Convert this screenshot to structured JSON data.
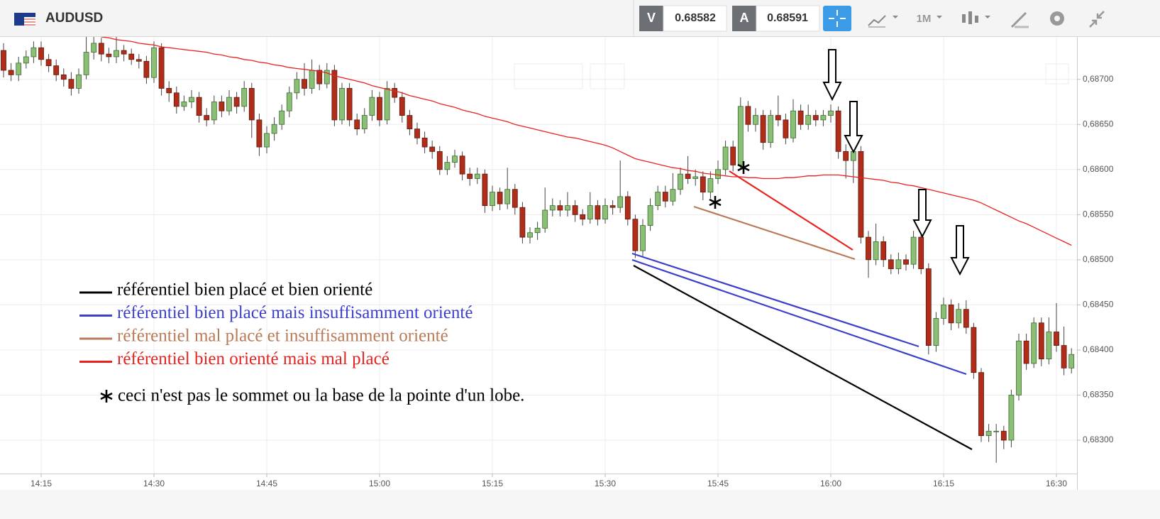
{
  "toolbar": {
    "symbol": "AUDUSD",
    "bid_label": "V",
    "bid": 0.68582,
    "ask_label": "A",
    "ask": 0.68591,
    "timeframe": "1M"
  },
  "chart_data": {
    "type": "candlestick",
    "categories": [
      null,
      null,
      null,
      null,
      null,
      "14:15",
      null,
      null,
      null,
      null,
      null,
      null,
      null,
      null,
      null,
      null,
      null,
      null,
      null,
      null,
      "14:30",
      null,
      null,
      null,
      null,
      null,
      null,
      null,
      null,
      null,
      null,
      null,
      null,
      null,
      null,
      "14:45",
      null,
      null,
      null,
      null,
      null,
      null,
      null,
      null,
      null,
      null,
      null,
      null,
      null,
      null,
      "15:00",
      null,
      null,
      null,
      null,
      null,
      null,
      null,
      null,
      null,
      null,
      null,
      null,
      null,
      null,
      "15:15",
      null,
      null,
      null,
      null,
      null,
      null,
      null,
      null,
      null,
      null,
      null,
      null,
      null,
      null,
      "15:30",
      null,
      null,
      null,
      null,
      null,
      null,
      null,
      null,
      null,
      null,
      null,
      null,
      null,
      null,
      "15:45",
      null,
      null,
      null,
      null,
      null,
      null,
      null,
      null,
      null,
      null,
      null,
      null,
      null,
      null,
      "16:00",
      null,
      null,
      null,
      null,
      null,
      null,
      null,
      null,
      null,
      null,
      null,
      null,
      null,
      null,
      "16:15",
      null,
      null,
      null,
      null,
      null,
      null,
      null,
      null,
      null,
      null,
      null,
      null,
      null,
      null,
      "16:30",
      null,
      null
    ],
    "open": [
      0.68732,
      0.6871,
      0.68705,
      0.68718,
      0.68725,
      0.68735,
      0.68722,
      0.68715,
      0.68705,
      0.687,
      0.6869,
      0.68705,
      0.6873,
      0.6874,
      0.68728,
      0.68725,
      0.68732,
      0.68728,
      0.68722,
      0.6872,
      0.68702,
      0.68735,
      0.6869,
      0.68685,
      0.6867,
      0.68675,
      0.6868,
      0.6866,
      0.68655,
      0.68675,
      0.68665,
      0.6868,
      0.6867,
      0.6869,
      0.68655,
      0.68625,
      0.6864,
      0.6865,
      0.68665,
      0.68685,
      0.687,
      0.6869,
      0.6871,
      0.68695,
      0.6871,
      0.68655,
      0.6869,
      0.68655,
      0.68645,
      0.6866,
      0.6868,
      0.68655,
      0.6869,
      0.6868,
      0.6866,
      0.68645,
      0.68635,
      0.68625,
      0.6862,
      0.686,
      0.68608,
      0.68615,
      0.68595,
      0.6859,
      0.68595,
      0.6856,
      0.68575,
      0.68562,
      0.68578,
      0.68558,
      0.68525,
      0.6853,
      0.68535,
      0.68555,
      0.6856,
      0.68555,
      0.6856,
      0.6855,
      0.68545,
      0.6856,
      0.68545,
      0.6856,
      0.68558,
      0.6857,
      0.68545,
      0.6851,
      0.68538,
      0.6856,
      0.68575,
      0.68565,
      0.68578,
      0.68595,
      0.6859,
      0.68592,
      0.68575,
      0.6859,
      0.686,
      0.68625,
      0.68605,
      0.6867,
      0.6865,
      0.6866,
      0.6863,
      0.6866,
      0.68655,
      0.68635,
      0.68665,
      0.6865,
      0.6866,
      0.68655,
      0.6866,
      0.68665,
      0.6862,
      0.6861,
      0.6862,
      0.68525,
      0.685,
      0.6852,
      0.685,
      0.6849,
      0.685,
      0.68495,
      0.68525,
      0.6849,
      0.68405,
      0.68435,
      0.6845,
      0.6843,
      0.68445,
      0.68425,
      0.68375,
      0.68305,
      0.6831,
      0.6831,
      0.683,
      0.6835,
      0.6841,
      0.68385,
      0.6843,
      0.6839,
      0.6842,
      0.68405,
      0.6838
    ],
    "high": [
      0.6874,
      0.68718,
      0.68725,
      0.68732,
      0.68742,
      0.68742,
      0.68728,
      0.68722,
      0.68712,
      0.68708,
      0.68712,
      0.68748,
      0.6875,
      0.68746,
      0.68735,
      0.68748,
      0.68738,
      0.68734,
      0.68728,
      0.68726,
      0.68742,
      0.6874,
      0.68698,
      0.68692,
      0.68682,
      0.68688,
      0.68686,
      0.68668,
      0.68682,
      0.68682,
      0.68688,
      0.68686,
      0.68698,
      0.68696,
      0.68662,
      0.68648,
      0.68658,
      0.68672,
      0.68692,
      0.68708,
      0.68718,
      0.68722,
      0.68716,
      0.68718,
      0.68716,
      0.68696,
      0.68696,
      0.68662,
      0.68668,
      0.68688,
      0.68686,
      0.68698,
      0.68696,
      0.68686,
      0.68666,
      0.68652,
      0.68642,
      0.68632,
      0.68626,
      0.68615,
      0.68622,
      0.6862,
      0.68602,
      0.68602,
      0.686,
      0.68582,
      0.6858,
      0.68602,
      0.68584,
      0.68564,
      0.68536,
      0.68542,
      0.6858,
      0.68568,
      0.68566,
      0.68575,
      0.68566,
      0.68556,
      0.68575,
      0.68566,
      0.68568,
      0.68566,
      0.6861,
      0.68576,
      0.6855,
      0.68545,
      0.68568,
      0.68582,
      0.68582,
      0.68596,
      0.68602,
      0.68615,
      0.686,
      0.68598,
      0.68598,
      0.6861,
      0.68632,
      0.68632,
      0.6868,
      0.68676,
      0.68668,
      0.68666,
      0.68666,
      0.68682,
      0.68662,
      0.68678,
      0.68672,
      0.68672,
      0.68666,
      0.68666,
      0.68672,
      0.6867,
      0.68628,
      0.68628,
      0.68626,
      0.68532,
      0.6854,
      0.68526,
      0.68506,
      0.68508,
      0.68506,
      0.68532,
      0.6853,
      0.68496,
      0.68442,
      0.68458,
      0.68456,
      0.68452,
      0.68455,
      0.6843,
      0.6838,
      0.68318,
      0.68318,
      0.68316,
      0.68356,
      0.68418,
      0.68418,
      0.68436,
      0.68436,
      0.68436,
      0.68452,
      0.68426,
      0.68402
    ],
    "low": [
      0.68702,
      0.68698,
      0.68698,
      0.68712,
      0.68718,
      0.68715,
      0.68708,
      0.68698,
      0.68692,
      0.68682,
      0.68684,
      0.687,
      0.68722,
      0.6872,
      0.68718,
      0.68718,
      0.6872,
      0.68716,
      0.68712,
      0.68695,
      0.68696,
      0.68682,
      0.68675,
      0.68662,
      0.68665,
      0.68668,
      0.68652,
      0.68648,
      0.6865,
      0.68658,
      0.6866,
      0.68662,
      0.68664,
      0.68635,
      0.68615,
      0.68618,
      0.68632,
      0.68644,
      0.68658,
      0.68678,
      0.68682,
      0.68684,
      0.68688,
      0.6869,
      0.68648,
      0.6865,
      0.68648,
      0.68638,
      0.6864,
      0.68654,
      0.68648,
      0.6865,
      0.68674,
      0.68652,
      0.68638,
      0.68628,
      0.68618,
      0.68612,
      0.68594,
      0.68594,
      0.68602,
      0.68588,
      0.68582,
      0.68584,
      0.68552,
      0.68554,
      0.68555,
      0.68556,
      0.6855,
      0.68518,
      0.68518,
      0.68522,
      0.6853,
      0.68548,
      0.68548,
      0.68548,
      0.68542,
      0.68538,
      0.6854,
      0.68538,
      0.6854,
      0.6855,
      0.68552,
      0.68538,
      0.68502,
      0.68504,
      0.68532,
      0.68555,
      0.68558,
      0.6856,
      0.68572,
      0.68584,
      0.68582,
      0.68566,
      0.68568,
      0.68584,
      0.68594,
      0.68598,
      0.686,
      0.68642,
      0.68642,
      0.68622,
      0.68624,
      0.68648,
      0.68628,
      0.6863,
      0.68644,
      0.68644,
      0.68648,
      0.68648,
      0.68652,
      0.68612,
      0.6859,
      0.68585,
      0.68518,
      0.6848,
      0.68494,
      0.68492,
      0.68484,
      0.68484,
      0.68488,
      0.6849,
      0.68484,
      0.68395,
      0.68398,
      0.68428,
      0.68422,
      0.68424,
      0.68418,
      0.68368,
      0.68298,
      0.68298,
      0.68275,
      0.6829,
      0.68292,
      0.68344,
      0.68378,
      0.6838,
      0.68382,
      0.68384,
      0.68398,
      0.68372,
      0.68374
    ],
    "close": [
      0.6871,
      0.68705,
      0.68718,
      0.68725,
      0.68735,
      0.68722,
      0.68715,
      0.68705,
      0.687,
      0.6869,
      0.68705,
      0.6873,
      0.6874,
      0.68728,
      0.68725,
      0.68732,
      0.68728,
      0.68722,
      0.6872,
      0.68702,
      0.68735,
      0.6869,
      0.68685,
      0.6867,
      0.68675,
      0.6868,
      0.6866,
      0.68655,
      0.68675,
      0.68665,
      0.6868,
      0.6867,
      0.6869,
      0.68655,
      0.68625,
      0.6864,
      0.6865,
      0.68665,
      0.68685,
      0.687,
      0.6869,
      0.6871,
      0.68695,
      0.6871,
      0.68655,
      0.6869,
      0.68655,
      0.68645,
      0.6866,
      0.6868,
      0.68655,
      0.6869,
      0.6868,
      0.6866,
      0.68645,
      0.68635,
      0.68625,
      0.6862,
      0.686,
      0.68608,
      0.68615,
      0.68595,
      0.6859,
      0.68595,
      0.6856,
      0.68575,
      0.68562,
      0.68578,
      0.68558,
      0.68525,
      0.6853,
      0.68535,
      0.68555,
      0.6856,
      0.68555,
      0.6856,
      0.6855,
      0.68545,
      0.6856,
      0.68545,
      0.6856,
      0.68558,
      0.6857,
      0.68545,
      0.6851,
      0.68538,
      0.6856,
      0.68575,
      0.68565,
      0.68578,
      0.68595,
      0.6859,
      0.68592,
      0.68575,
      0.6859,
      0.686,
      0.68625,
      0.68605,
      0.6867,
      0.6865,
      0.6866,
      0.6863,
      0.6866,
      0.68655,
      0.68635,
      0.68665,
      0.6865,
      0.6866,
      0.68655,
      0.6866,
      0.68665,
      0.6862,
      0.6861,
      0.6862,
      0.68525,
      0.685,
      0.6852,
      0.685,
      0.6849,
      0.685,
      0.68495,
      0.68525,
      0.6849,
      0.68405,
      0.68435,
      0.6845,
      0.6843,
      0.68445,
      0.68425,
      0.68375,
      0.68305,
      0.6831,
      0.6831,
      0.683,
      0.6835,
      0.6841,
      0.68385,
      0.6843,
      0.6839,
      0.6842,
      0.68405,
      0.6838,
      0.68395
    ],
    "up_color": "#8cbf76",
    "down_color": "#b02d1a",
    "moving_average": {
      "color": "#e8231f",
      "values": [
        null,
        null,
        null,
        null,
        null,
        null,
        null,
        null,
        null,
        null,
        null,
        null,
        null,
        0.68747,
        0.68746,
        0.68744,
        0.68743,
        0.68742,
        0.6874,
        0.68739,
        0.68738,
        0.68736,
        0.68735,
        0.68734,
        0.68733,
        0.68732,
        0.68731,
        0.6873,
        0.68728,
        0.68727,
        0.68725,
        0.68724,
        0.68722,
        0.68721,
        0.68719,
        0.68718,
        0.68716,
        0.68715,
        0.68713,
        0.68712,
        0.68711,
        0.6871,
        0.68709,
        0.68707,
        0.68704,
        0.68702,
        0.687,
        0.68698,
        0.68696,
        0.68693,
        0.68691,
        0.68689,
        0.68687,
        0.68685,
        0.68682,
        0.6868,
        0.68678,
        0.68676,
        0.68673,
        0.68671,
        0.68669,
        0.68666,
        0.68664,
        0.68662,
        0.68659,
        0.68657,
        0.68655,
        0.68653,
        0.6865,
        0.68648,
        0.68646,
        0.68644,
        0.68642,
        0.6864,
        0.68638,
        0.68636,
        0.68635,
        0.68633,
        0.68631,
        0.68629,
        0.68627,
        0.68624,
        0.6862,
        0.68616,
        0.68612,
        0.6861,
        0.68608,
        0.68606,
        0.68604,
        0.68602,
        0.68601,
        0.68599,
        0.68598,
        0.68596,
        0.68595,
        0.68594,
        0.68593,
        0.68592,
        0.68592,
        0.68591,
        0.68591,
        0.6859,
        0.6859,
        0.6859,
        0.68591,
        0.68591,
        0.68592,
        0.68593,
        0.68593,
        0.68594,
        0.68594,
        0.68594,
        0.68593,
        0.68592,
        0.68591,
        0.6859,
        0.68589,
        0.68588,
        0.68586,
        0.68585,
        0.68583,
        0.68582,
        0.6858,
        0.68578,
        0.68576,
        0.68574,
        0.68572,
        0.6857,
        0.68568,
        0.68566,
        0.68563,
        0.68559,
        0.68555,
        0.68551,
        0.68547,
        0.68543,
        0.6854,
        0.68536,
        0.68532,
        0.68528,
        0.68524,
        0.6852,
        0.68516
      ]
    },
    "ylim": [
      0.68263,
      0.68747
    ],
    "yticks": [
      {
        "value": 0.683,
        "label": "0,68300"
      },
      {
        "value": 0.6835,
        "label": "0,68350"
      },
      {
        "value": 0.684,
        "label": "0,68400"
      },
      {
        "value": 0.6845,
        "label": "0,68450"
      },
      {
        "value": 0.685,
        "label": "0,68500"
      },
      {
        "value": 0.6855,
        "label": "0,68550"
      },
      {
        "value": 0.686,
        "label": "0,68600"
      },
      {
        "value": 0.6865,
        "label": "0,68650"
      },
      {
        "value": 0.687,
        "label": "0,68700"
      }
    ],
    "grid": true,
    "legend": [
      {
        "text": "référentiel bien placé et bien orienté",
        "color": "#000000"
      },
      {
        "text": "référentiel bien placé mais insuffisamment orienté",
        "color": "#3b3fca"
      },
      {
        "text": "référentiel mal placé et insuffisamment orienté",
        "color": "#b97a57"
      },
      {
        "text": "référentiel bien orienté mais mal placé",
        "color": "#e8231f"
      }
    ],
    "note": "ceci n'est pas le sommet ou la base de la pointe d'un lobe."
  }
}
